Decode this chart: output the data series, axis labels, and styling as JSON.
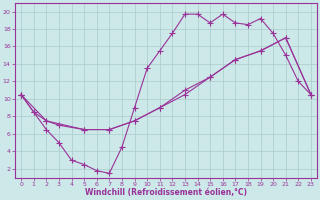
{
  "xlabel": "Windchill (Refroidissement éolien,°C)",
  "bg_color": "#cce8e8",
  "line_color": "#993399",
  "grid_color": "#aacccc",
  "xlim": [
    -0.5,
    23.5
  ],
  "ylim": [
    1,
    21
  ],
  "yticks": [
    2,
    4,
    6,
    8,
    10,
    12,
    14,
    16,
    18,
    20
  ],
  "xticks": [
    0,
    1,
    2,
    3,
    4,
    5,
    6,
    7,
    8,
    9,
    10,
    11,
    12,
    13,
    14,
    15,
    16,
    17,
    18,
    19,
    20,
    21,
    22,
    23
  ],
  "line1_x": [
    0,
    1,
    2,
    3,
    4,
    5,
    6,
    7,
    8,
    9,
    10,
    11,
    12,
    13,
    14,
    15,
    16,
    17,
    18,
    19,
    20,
    21,
    22,
    23
  ],
  "line1_y": [
    10.5,
    8.5,
    6.5,
    5.0,
    3.0,
    2.5,
    1.8,
    1.5,
    4.5,
    9.0,
    13.5,
    15.5,
    17.5,
    19.7,
    19.7,
    18.7,
    19.7,
    18.7,
    18.5,
    19.2,
    17.5,
    15.0,
    12.0,
    10.5
  ],
  "line2_x": [
    0,
    1,
    2,
    3,
    5,
    7,
    9,
    11,
    13,
    15,
    17,
    19,
    21,
    23
  ],
  "line2_y": [
    10.5,
    8.5,
    7.5,
    7.0,
    6.5,
    6.5,
    7.5,
    9.0,
    10.5,
    12.5,
    14.5,
    15.5,
    17.0,
    10.5
  ],
  "line3_x": [
    0,
    2,
    5,
    7,
    9,
    11,
    13,
    15,
    17,
    19,
    21,
    23
  ],
  "line3_y": [
    10.5,
    7.5,
    6.5,
    6.5,
    7.5,
    9.0,
    11.0,
    12.5,
    14.5,
    15.5,
    17.0,
    10.5
  ]
}
